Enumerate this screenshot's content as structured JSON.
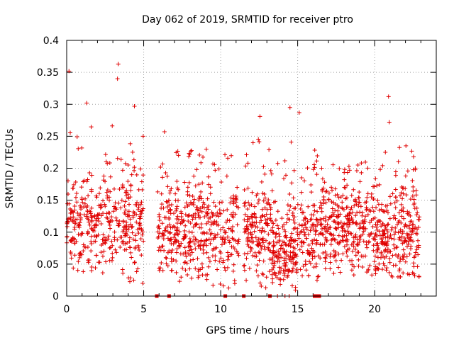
{
  "chart_data": {
    "type": "scatter",
    "title": "Day 062 of 2019, SRMTID for receiver ptro",
    "xlabel": "GPS time / hours",
    "ylabel": "SRMTID / TECUs",
    "xlim": [
      0,
      24
    ],
    "ylim": [
      0,
      0.4
    ],
    "grid": true,
    "marker": "+",
    "color": "#e00000",
    "x_ticks": [
      0,
      5,
      10,
      15,
      20
    ],
    "y_ticks": [
      0,
      0.05,
      0.1,
      0.15,
      0.2,
      0.25,
      0.3,
      0.35,
      0.4
    ],
    "x_tick_labels": [
      "0",
      "5",
      "10",
      "15",
      "20"
    ],
    "y_tick_labels": [
      "0",
      "0.05",
      "0.1",
      "0.15",
      "0.2",
      "0.25",
      "0.3",
      "0.35",
      "0.4"
    ],
    "series": [
      {
        "name": "SRMTID",
        "notable_points": [
          {
            "x": 0.15,
            "y": 0.352
          },
          {
            "x": 1.3,
            "y": 0.302
          },
          {
            "x": 3.35,
            "y": 0.363
          },
          {
            "x": 3.3,
            "y": 0.34
          },
          {
            "x": 4.4,
            "y": 0.297
          },
          {
            "x": 6.35,
            "y": 0.257
          },
          {
            "x": 12.55,
            "y": 0.281
          },
          {
            "x": 14.5,
            "y": 0.295
          },
          {
            "x": 15.1,
            "y": 0.287
          },
          {
            "x": 20.9,
            "y": 0.312
          },
          {
            "x": 20.95,
            "y": 0.272
          },
          {
            "x": 4.35,
            "y": 0.025
          }
        ],
        "segments": [
          {
            "x_start": 0.0,
            "x_end": 5.0,
            "count": 400,
            "y_low": 0.02,
            "y_high": 0.27,
            "y_center": 0.11
          },
          {
            "x_start": 5.9,
            "x_end": 7.0,
            "count": 90,
            "y_low": 0.04,
            "y_high": 0.21,
            "y_center": 0.1
          },
          {
            "x_start": 7.0,
            "x_end": 11.2,
            "count": 360,
            "y_low": 0.0,
            "y_high": 0.23,
            "y_center": 0.1
          },
          {
            "x_start": 11.5,
            "x_end": 13.3,
            "count": 170,
            "y_low": 0.01,
            "y_high": 0.25,
            "y_center": 0.1
          },
          {
            "x_start": 13.3,
            "x_end": 15.0,
            "count": 190,
            "y_low": 0.0,
            "y_high": 0.26,
            "y_center": 0.07
          },
          {
            "x_start": 15.0,
            "x_end": 16.3,
            "count": 110,
            "y_low": 0.01,
            "y_high": 0.23,
            "y_center": 0.1
          },
          {
            "x_start": 16.3,
            "x_end": 20.5,
            "count": 380,
            "y_low": 0.02,
            "y_high": 0.21,
            "y_center": 0.1
          },
          {
            "x_start": 20.5,
            "x_end": 22.9,
            "count": 230,
            "y_low": 0.03,
            "y_high": 0.24,
            "y_center": 0.1
          }
        ],
        "zero_points": [
          5.85,
          6.65,
          10.3,
          11.5,
          13.2,
          16.1,
          16.25,
          16.4
        ]
      }
    ]
  }
}
